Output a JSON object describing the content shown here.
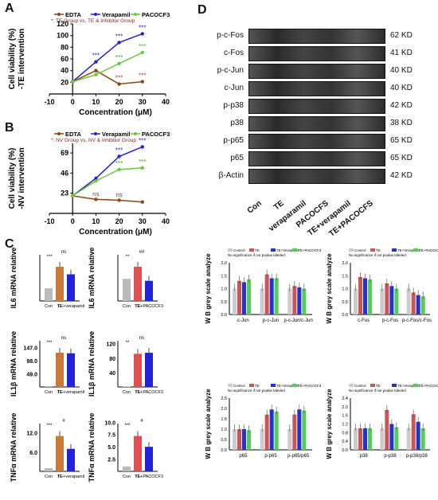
{
  "panels": {
    "A": {
      "label": "A",
      "ylabel_1": "Cell viability (%)",
      "ylabel_2": "-TE intervention",
      "xlabel": "Concentration (μM)",
      "legend": [
        "EDTA",
        "Verapamil",
        "PACOCF3"
      ],
      "note": "*: TE Group vs. TE & Inhibitor Group",
      "xticks": [
        "-10",
        "0",
        "10",
        "20",
        "30",
        "40"
      ],
      "yticks": [
        "20",
        "40",
        "60",
        "80",
        "100",
        "120"
      ]
    },
    "B": {
      "label": "B",
      "ylabel_1": "Cell viability (%)",
      "ylabel_2": "-NV intervention",
      "xlabel": "Concentration (μM)",
      "legend": [
        "EDTA",
        "Verapamil",
        "PACOCF3"
      ],
      "note": "*: NV Group vs. NV & Inhibitor Group",
      "xticks": [
        "-10",
        "0",
        "10",
        "20",
        "30",
        "40"
      ],
      "yticks": [
        "23",
        "46",
        "69"
      ],
      "ns1": "ns",
      "ns2": "ns"
    },
    "C": {
      "label": "C"
    },
    "D": {
      "label": "D",
      "blots": [
        "p-c-Fos",
        "c-Fos",
        "p-c-Jun",
        "c-Jun",
        "p-p38",
        "p38",
        "p-p65",
        "p65",
        "β-Actin"
      ],
      "kd": [
        "62 KD",
        "41 KD",
        "40 KD",
        "40 KD",
        "42 KD",
        "38 KD",
        "65 KD",
        "65 KD",
        "42 KD"
      ],
      "lanes": [
        "Con",
        "TE",
        "veraparamil",
        "PACOCFS",
        "TE+verapamil",
        "TE+PACOCFS"
      ]
    }
  },
  "chart_data": [
    {
      "type": "line",
      "panel": "A",
      "x": [
        0,
        10,
        20,
        30
      ],
      "series": [
        {
          "name": "EDTA",
          "color": "#8B4513",
          "values": [
            21,
            40,
            17,
            21
          ]
        },
        {
          "name": "Verapamil",
          "color": "#2222cc",
          "values": [
            21,
            55,
            88,
            103
          ]
        },
        {
          "name": "PACOCF3",
          "color": "#66cc33",
          "values": [
            21,
            33,
            52,
            71
          ]
        }
      ],
      "xlim": [
        -10,
        40
      ],
      "ylim": [
        0,
        120
      ]
    },
    {
      "type": "line",
      "panel": "B",
      "x": [
        0,
        10,
        20,
        30
      ],
      "series": [
        {
          "name": "EDTA",
          "color": "#8B4513",
          "values": [
            20,
            16,
            15,
            13
          ]
        },
        {
          "name": "Verapamil",
          "color": "#2222cc",
          "values": [
            20,
            40,
            65,
            76
          ]
        },
        {
          "name": "PACOCF3",
          "color": "#66cc33",
          "values": [
            20,
            37,
            50,
            52
          ]
        }
      ],
      "xlim": [
        -10,
        40
      ],
      "ylim": [
        0,
        80
      ]
    },
    {
      "type": "bar",
      "panel": "C",
      "subplots": [
        {
          "ylabel": "IL6 mRNA relative",
          "categories": [
            "Con",
            "TE",
            "TE+verapamil"
          ],
          "values": [
            1.0,
            2.7,
            2.1
          ],
          "colors": [
            "#bbbbbb",
            "#c87a3a",
            "#2222dd"
          ],
          "sig": [
            "***",
            "ns"
          ]
        },
        {
          "ylabel": "IL6 mRNA relative",
          "categories": [
            "Con",
            "TE",
            "TE+PACOCF3"
          ],
          "values": [
            1.1,
            1.7,
            1.0
          ],
          "colors": [
            "#bbbbbb",
            "#e05050",
            "#2222dd"
          ],
          "sig": [
            "**",
            "##"
          ]
        },
        {
          "ylabel": "IL1β mRNA relative",
          "categories": [
            "Con",
            "TE",
            "TE+verapamil"
          ],
          "values": [
            1.0,
            127,
            125
          ],
          "colors": [
            "#bbbbbb",
            "#c87a3a",
            "#2222dd"
          ],
          "sig": [
            "***",
            "ns"
          ],
          "yticks": [
            "196.0",
            "147.0",
            "98.0",
            "49.0"
          ]
        },
        {
          "ylabel": "IL1β mRNA relative",
          "categories": [
            "Con",
            "TE",
            "TE+PACOCF3"
          ],
          "values": [
            1.0,
            92,
            95
          ],
          "colors": [
            "#bbbbbb",
            "#e05050",
            "#2222dd"
          ],
          "sig": [
            "**",
            "ns"
          ],
          "yticks": [
            "160",
            "120",
            "80",
            "40"
          ]
        },
        {
          "ylabel": "TNFα mRNA relative",
          "categories": [
            "Con",
            "TE",
            "TE+verapamil"
          ],
          "values": [
            1.0,
            11,
            7
          ],
          "colors": [
            "#bbbbbb",
            "#c87a3a",
            "#2222dd"
          ],
          "sig": [
            "***",
            "#"
          ],
          "yticks": [
            "18.0",
            "12.0",
            "6.0"
          ]
        },
        {
          "ylabel": "TNFα mRNA relative",
          "categories": [
            "Con",
            "TE",
            "TE+PACOCF3"
          ],
          "values": [
            1.0,
            7.2,
            5.0
          ],
          "colors": [
            "#bbbbbb",
            "#e05050",
            "#2222dd"
          ],
          "sig": [
            "***",
            "#"
          ],
          "yticks": [
            "10.0",
            "7.5",
            "5.0",
            "2.5"
          ]
        }
      ]
    },
    {
      "type": "bar",
      "panel": "D-quant",
      "legend": [
        "Control",
        "TE",
        "TE+Verapamil",
        "TE+PACOCF3"
      ],
      "legend_note": "No significance if not pvalue labeled",
      "colors": [
        "#cccccc",
        "#cc5555",
        "#2233cc",
        "#55cc55"
      ],
      "ylabel": "W B  grey scale analyze",
      "subplots": [
        {
          "groups": [
            "c-Jun",
            "p-c-Jun",
            "p-c-Jun/c-Jun"
          ],
          "values": [
            [
              1.0,
              1.3,
              1.25,
              1.35
            ],
            [
              1.0,
              1.55,
              1.4,
              1.4
            ],
            [
              1.0,
              1.1,
              1.05,
              1.0
            ]
          ],
          "yticks": [
            "2.0",
            "1.5",
            "1.0",
            "0.5",
            "0.0"
          ]
        },
        {
          "groups": [
            "c-Fos",
            "p-c-Fos",
            "p-c-Fos/c-Fos"
          ],
          "values": [
            [
              1.0,
              1.45,
              1.4,
              1.35
            ],
            [
              1.0,
              1.2,
              1.1,
              1.0
            ],
            [
              1.0,
              0.85,
              0.75,
              0.7
            ]
          ],
          "yticks": [
            "2.0",
            "1.5",
            "1.0",
            "0.5",
            "0.0"
          ]
        },
        {
          "groups": [
            "p65",
            "p-p65",
            "p-p65/p65"
          ],
          "values": [
            [
              1.0,
              1.0,
              1.0,
              0.95
            ],
            [
              1.0,
              1.7,
              1.95,
              1.85
            ],
            [
              1.0,
              1.7,
              1.95,
              1.9
            ]
          ],
          "yticks": [
            "2.5",
            "2.0",
            "1.5",
            "1.0",
            "0.5",
            "0.0"
          ]
        },
        {
          "groups": [
            "p38",
            "p-p38",
            "p-p38/p38"
          ],
          "values": [
            [
              1.0,
              1.0,
              1.0,
              1.0
            ],
            [
              1.0,
              1.85,
              1.2,
              1.05
            ],
            [
              1.0,
              1.65,
              1.3,
              1.0
            ]
          ],
          "yticks": [
            "2.4",
            "2.2",
            "2.0",
            "1.8",
            "1.6",
            "1.4",
            "1.2",
            "1.0",
            "0.8",
            "0.6",
            "0.4",
            "0.2",
            "0.0"
          ]
        }
      ]
    }
  ]
}
